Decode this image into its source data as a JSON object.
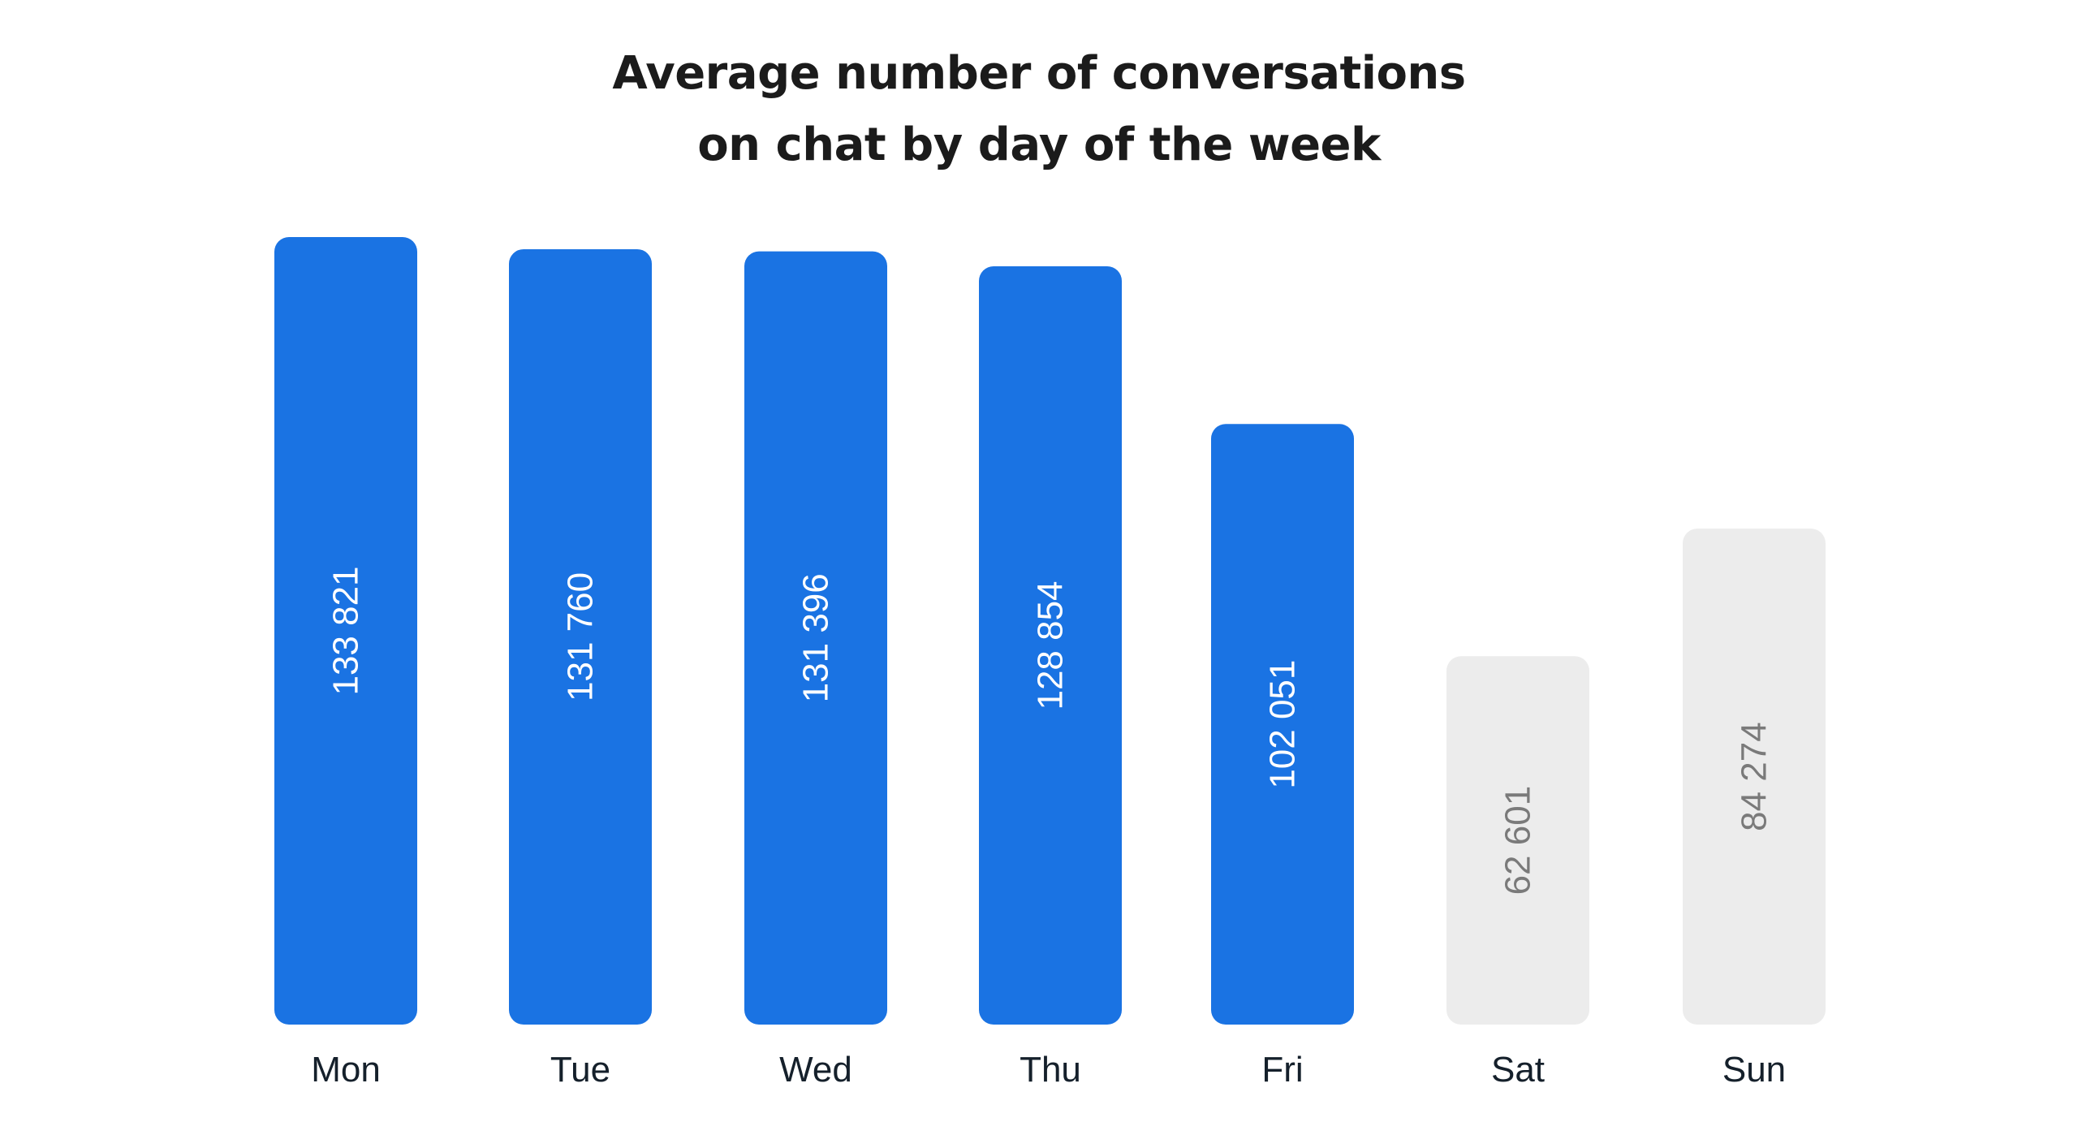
{
  "chart_data": {
    "type": "bar",
    "title_lines": [
      "Average number of conversations",
      "on chat by day of the week"
    ],
    "categories": [
      "Mon",
      "Tue",
      "Wed",
      "Thu",
      "Fri",
      "Sat",
      "Sun"
    ],
    "values": [
      133821,
      131760,
      131396,
      128854,
      102051,
      62601,
      84274
    ],
    "value_labels": [
      "133 821",
      "131 760",
      "131 396",
      "128 854",
      "102 051",
      "62 601",
      "84 274"
    ],
    "xlabel": "",
    "ylabel": "",
    "ylim": [
      0,
      133821
    ],
    "grid": false,
    "legend": "none",
    "colors": {
      "weekday_bar": "#1a73e3",
      "weekend_bar": "#ececec",
      "weekday_label": "#ffffff",
      "weekend_label": "#7a7a7a",
      "category_label": "#15202b"
    },
    "bar_groups": [
      "weekday",
      "weekday",
      "weekday",
      "weekday",
      "weekday",
      "weekend",
      "weekend"
    ]
  }
}
